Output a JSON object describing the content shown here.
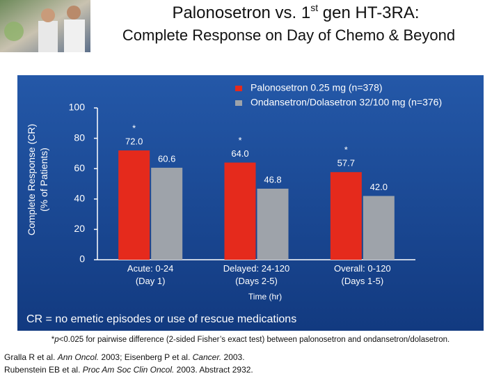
{
  "header": {
    "title_parts": [
      "Palonosetron vs. 1",
      "st",
      " gen HT-3RA:"
    ],
    "subtitle": "Complete Response on Day of Chemo & Beyond"
  },
  "chart_data": {
    "type": "bar",
    "categories": [
      [
        "Acute: 0-24",
        "(Day 1)"
      ],
      [
        "Delayed: 24-120",
        "(Days 2-5)"
      ],
      [
        "Overall: 0-120",
        "(Days 1-5)"
      ]
    ],
    "series": [
      {
        "name": "Palonosetron 0.25 mg (n=378)",
        "color": "#e52a1c",
        "values": [
          72.0,
          64.0,
          57.7
        ],
        "value_labels": [
          "72.0",
          "64.0",
          "57.7"
        ],
        "annotations": [
          "*",
          "*",
          "*"
        ]
      },
      {
        "name": "Ondansetron/Dolasetron 32/100 mg (n=376)",
        "color": "#9ea3aa",
        "values": [
          60.6,
          46.8,
          42.0
        ],
        "value_labels": [
          "60.6",
          "46.8",
          "42.0"
        ]
      }
    ],
    "ylim": [
      0,
      100
    ],
    "yticks": [
      0,
      20,
      40,
      60,
      80,
      100
    ],
    "ylabel": [
      "Complete Response (CR)",
      "(% of Patients)"
    ],
    "xlabel": "Time (hr)",
    "legend": "top-right",
    "note": "CR = no emetic episodes or use of rescue medications"
  },
  "footnote": [
    "*",
    "p",
    "<0.025 for pairwise difference (2-sided Fisher’s exact test) between palonosetron and ondansetron/dolasetron."
  ],
  "references": [
    [
      "Gralla R et al. ",
      "Ann Oncol.",
      " 2003; Eisenberg P et al. ",
      "Cancer.",
      " 2003."
    ],
    [
      "Rubenstein EB et al. ",
      "Proc Am Soc Clin Oncol.",
      " 2003. Abstract 2932."
    ]
  ]
}
